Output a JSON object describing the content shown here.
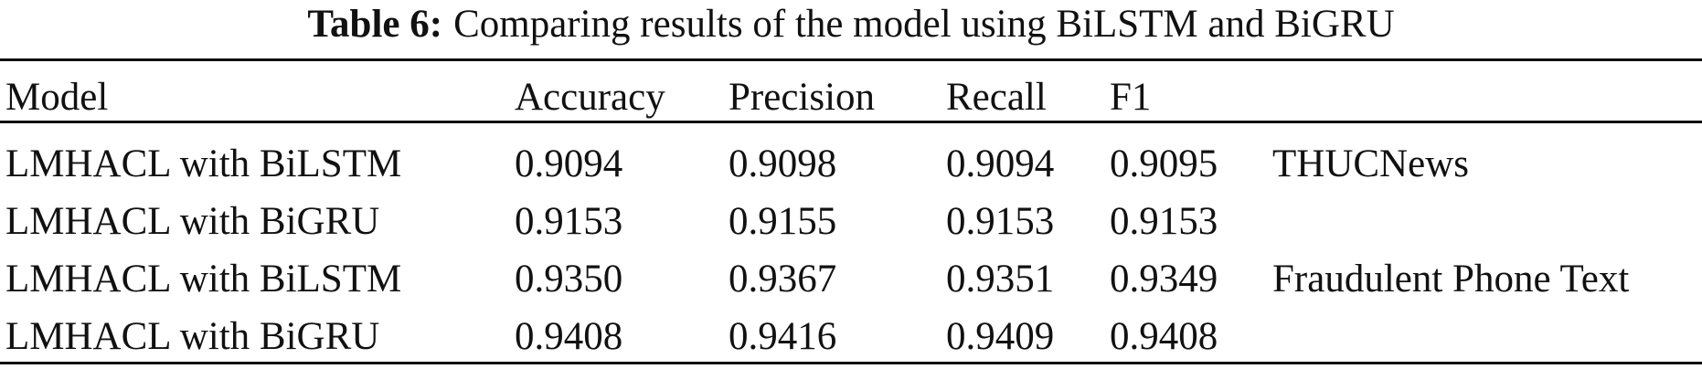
{
  "caption": {
    "label": "Table 6:",
    "text": "Comparing results of the model using BiLSTM and BiGRU"
  },
  "table": {
    "header": [
      "Model",
      "Accuracy",
      "Precision",
      "Recall",
      "F1"
    ],
    "rows": [
      {
        "cells": [
          "LMHACL with BiLSTM",
          "0.9094",
          "0.9098",
          "0.9094",
          "0.9095"
        ],
        "dataset": "THUCNews"
      },
      {
        "cells": [
          "LMHACL with BiGRU",
          "0.9153",
          "0.9155",
          "0.9153",
          "0.9153"
        ]
      },
      {
        "cells": [
          "LMHACL with BiLSTM",
          "0.9350",
          "0.9367",
          "0.9351",
          "0.9349"
        ],
        "dataset": "Fraudulent Phone Text"
      },
      {
        "cells": [
          "LMHACL with BiGRU",
          "0.9408",
          "0.9416",
          "0.9409",
          "0.9408"
        ]
      }
    ]
  }
}
